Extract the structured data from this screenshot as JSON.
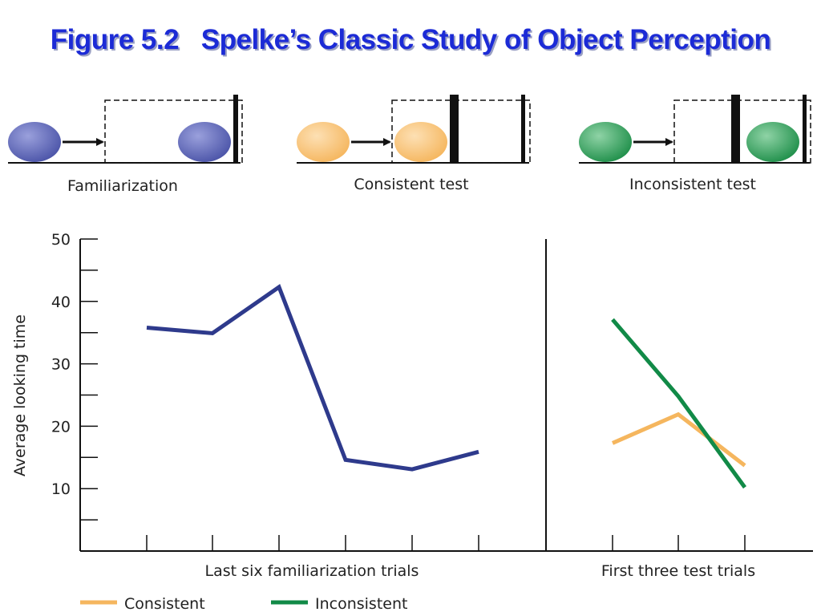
{
  "title": "Figure 5.2   Spelke’s Classic Study of Object Perception",
  "scenes": [
    {
      "label": "Familiarization",
      "ball_color": "#4b54a8",
      "ball_highlight": "#9aa0dc"
    },
    {
      "label": "Consistent test",
      "ball_color": "#f5b65e",
      "ball_highlight": "#fde0b4"
    },
    {
      "label": "Inconsistent test",
      "ball_color": "#1f8f4a",
      "ball_highlight": "#8fd3a6"
    }
  ],
  "chart_data": {
    "type": "line",
    "ylabel": "Average looking time",
    "ylim": [
      0,
      50
    ],
    "yticks": [
      10,
      20,
      30,
      40,
      50
    ],
    "panels": [
      {
        "xlabel": "Last six familiarization trials",
        "x": [
          1,
          2,
          3,
          4,
          5,
          6
        ],
        "series": [
          {
            "name": "",
            "color": "#2e3a8c",
            "values": [
              35.8,
              34.9,
              42.3,
              14.6,
              13.1,
              15.9
            ]
          }
        ]
      },
      {
        "xlabel": "First three test trials",
        "x": [
          1,
          2,
          3
        ],
        "series": [
          {
            "name": "Consistent",
            "color": "#f5b65e",
            "values": [
              17.3,
              21.9,
              13.7
            ]
          },
          {
            "name": "Inconsistent",
            "color": "#118a47",
            "values": [
              37.1,
              24.8,
              10.2
            ]
          }
        ]
      }
    ],
    "legend": [
      {
        "label": "Consistent",
        "color": "#f5b65e"
      },
      {
        "label": "Inconsistent",
        "color": "#118a47"
      }
    ],
    "legend_position": "bottom-left"
  }
}
